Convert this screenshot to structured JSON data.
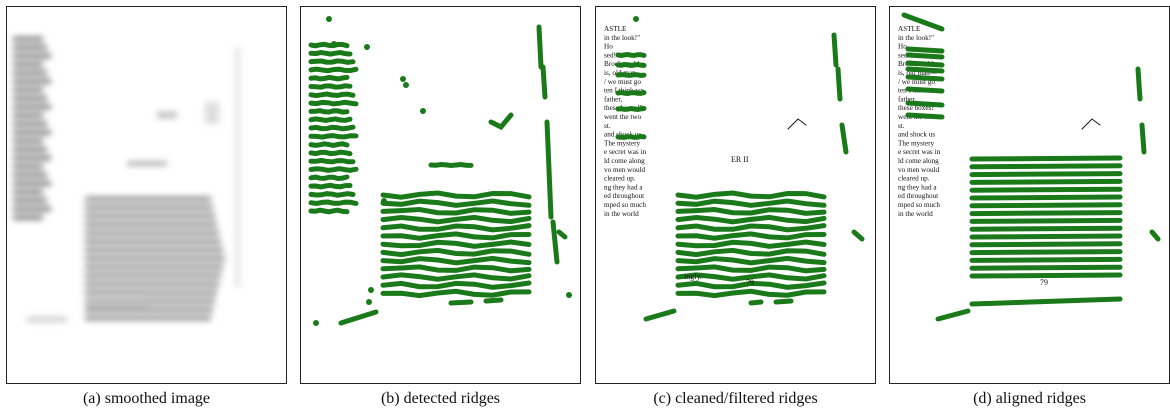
{
  "figure": {
    "panels": [
      {
        "id": "a",
        "caption": "(a) smoothed image"
      },
      {
        "id": "b",
        "caption": "(b) detected ridges"
      },
      {
        "id": "c",
        "caption": "(c) cleaned/filtered ridges"
      },
      {
        "id": "d",
        "caption": "(d) aligned ridges"
      }
    ],
    "ridge_color": "#1a7a1a",
    "page_text": {
      "c_lines": [
        "ASTLE",
        "in the look!\"",
        "Ho",
        "sed!\"",
        "Brock, and he",
        "is, old man—",
        "/ we must go",
        "ten I think we",
        "father,",
        "these boxes!\"",
        "went the two",
        "st.",
        "and shock us",
        "The mystery",
        "e secret was in",
        "ld come along",
        "vo men would",
        "cleared up.",
        "ng they had a",
        "ed throughout",
        "mped so much",
        "in the world"
      ],
      "d_lines": [
        "ASTLE",
        "in the look!\"",
        "Ho",
        "sed!\"",
        "Brock, and he",
        "is, old man—",
        "/ we must go",
        "ten I think we",
        "father,",
        "these boxes!\"",
        "went the two",
        "st.",
        "and shock us",
        "The mystery",
        "e secret was in",
        "ld come along",
        "vo men would",
        "cleared up.",
        "ng they had a",
        "ed throughout",
        "mped so much",
        "in the world"
      ],
      "chapter_mark": "ER II",
      "page_number": "79",
      "word_ingly": "ingly."
    }
  }
}
